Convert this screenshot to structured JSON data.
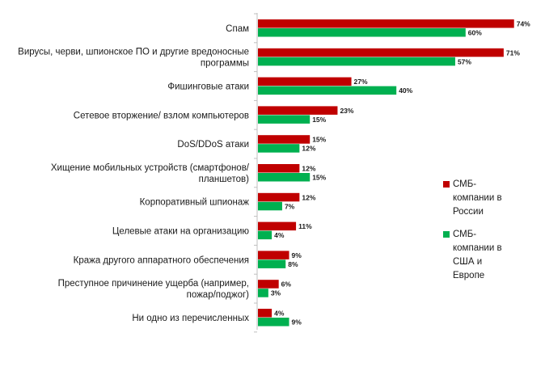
{
  "chart_data": {
    "type": "bar",
    "orientation": "horizontal",
    "categories": [
      [
        "Спам"
      ],
      [
        "Вирусы, черви, шпионское ПО и другие вредоносные",
        "программы"
      ],
      [
        "Фишинговые атаки"
      ],
      [
        "Сетевое вторжение/ взлом компьютеров"
      ],
      [
        "DoS/DDoS атаки"
      ],
      [
        "Хищение мобильных устройств (смартфонов/",
        "планшетов)"
      ],
      [
        "Корпоративный шпионаж"
      ],
      [
        "Целевые атаки на организацию"
      ],
      [
        "Кража другого аппаратного обеспечения"
      ],
      [
        "Преступное причинение ущерба (например,",
        "пожар/поджог)"
      ],
      [
        "Ни одно из перечисленных"
      ]
    ],
    "series": [
      {
        "name": "СМБ-компании в России",
        "color": "#c00000",
        "values": [
          74,
          71,
          27,
          23,
          15,
          12,
          12,
          11,
          9,
          6,
          4
        ],
        "labels": [
          "74%",
          "71%",
          "27%",
          "23%",
          "15%",
          "12%",
          "12%",
          "11%",
          "9%",
          "6%",
          "4%"
        ]
      },
      {
        "name": "СМБ-компании в США и Европе",
        "color": "#00b050",
        "values": [
          60,
          57,
          40,
          15,
          12,
          15,
          7,
          4,
          8,
          3,
          9
        ],
        "labels": [
          "60%",
          "57%",
          "40%",
          "15%",
          "12%",
          "15%",
          "7%",
          "4%",
          "8%",
          "3%",
          "9%"
        ]
      }
    ],
    "xlim": [
      0,
      80
    ],
    "grid": false,
    "legend_position": "right"
  },
  "legend": {
    "items": [
      {
        "lines": [
          "СМБ-",
          "компании в",
          "России"
        ],
        "color": "#c00000"
      },
      {
        "lines": [
          "СМБ-",
          "компании в",
          "США и",
          "Европе"
        ],
        "color": "#00b050"
      }
    ]
  }
}
